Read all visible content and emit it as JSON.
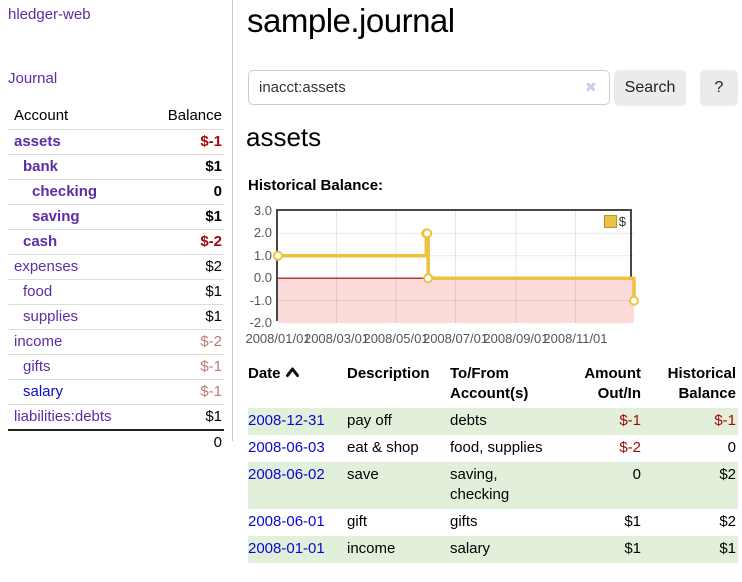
{
  "app": {
    "brand": "hledger-web",
    "nav": {
      "journal": "Journal"
    }
  },
  "sidebar": {
    "headers": {
      "account": "Account",
      "balance": "Balance"
    },
    "accounts": [
      {
        "name": "assets",
        "balance": "$-1",
        "depth": 1,
        "current": true
      },
      {
        "name": "bank",
        "balance": "$1",
        "depth": 2,
        "current": true
      },
      {
        "name": "checking",
        "balance": "0",
        "depth": 3,
        "current": true
      },
      {
        "name": "saving",
        "balance": "$1",
        "depth": 3,
        "current": true
      },
      {
        "name": "cash",
        "balance": "$-2",
        "depth": 2,
        "current": true
      },
      {
        "name": "expenses",
        "balance": "$2",
        "depth": 1,
        "current": false
      },
      {
        "name": "food",
        "balance": "$1",
        "depth": 2,
        "current": false
      },
      {
        "name": "supplies",
        "balance": "$1",
        "depth": 2,
        "current": false
      },
      {
        "name": "income",
        "balance": "$-2",
        "depth": 1,
        "current": false
      },
      {
        "name": "gifts",
        "balance": "$-1",
        "depth": 2,
        "current": false
      },
      {
        "name": "salary",
        "balance": "$-1",
        "depth": 2,
        "current": false,
        "unvisited": true
      },
      {
        "name": "liabilities:debts",
        "balance": "$1",
        "depth": 1,
        "current": false
      }
    ],
    "total": "0"
  },
  "header": {
    "title": "sample.journal"
  },
  "search": {
    "value": "inacct:assets",
    "clear_icon": "✖",
    "button_label": "Search",
    "help_label": "?"
  },
  "account_page": {
    "title": "assets",
    "chart_label": "Historical Balance:"
  },
  "chart_data": {
    "type": "line",
    "title": "Historical Balance",
    "legend": "$",
    "legend_position": "top-right",
    "ylim": [
      -2,
      3
    ],
    "x_range": [
      "2008-01-01",
      "2008-12-31"
    ],
    "y_ticks": [
      "3.0",
      "2.0",
      "1.0",
      "0.0",
      "-1.0",
      "-2.0"
    ],
    "x_ticks": [
      "2008/01/01",
      "2008/03/01",
      "2008/05/01",
      "2008/07/01",
      "2008/09/01",
      "2008/11/01"
    ],
    "grid": true,
    "negative_region_color": "#fbdada",
    "zero_line_color": "#a40000",
    "series": [
      {
        "name": "$",
        "color": "#edc240",
        "step": true,
        "points": [
          [
            "2008-01-01",
            1
          ],
          [
            "2008-06-01",
            2
          ],
          [
            "2008-06-02",
            2
          ],
          [
            "2008-06-03",
            0
          ],
          [
            "2008-12-31",
            -1
          ]
        ]
      }
    ]
  },
  "table": {
    "headers": {
      "date": "Date",
      "description": "Description",
      "accounts": "To/From Account(s)",
      "amount": "Amount Out/In",
      "balance": "Historical Balance"
    },
    "sort": {
      "column": "date",
      "direction": "asc"
    },
    "rows": [
      {
        "date": "2008-12-31",
        "description": "pay off",
        "accounts": "debts",
        "amount": "$-1",
        "balance": "$-1"
      },
      {
        "date": "2008-06-03",
        "description": "eat & shop",
        "accounts": "food, supplies",
        "amount": "$-2",
        "balance": "0"
      },
      {
        "date": "2008-06-02",
        "description": "save",
        "accounts": "saving, checking",
        "amount": "0",
        "balance": "$2"
      },
      {
        "date": "2008-06-01",
        "description": "gift",
        "accounts": "gifts",
        "amount": "$1",
        "balance": "$2"
      },
      {
        "date": "2008-01-01",
        "description": "income",
        "accounts": "salary",
        "amount": "$1",
        "balance": "$1"
      }
    ]
  }
}
